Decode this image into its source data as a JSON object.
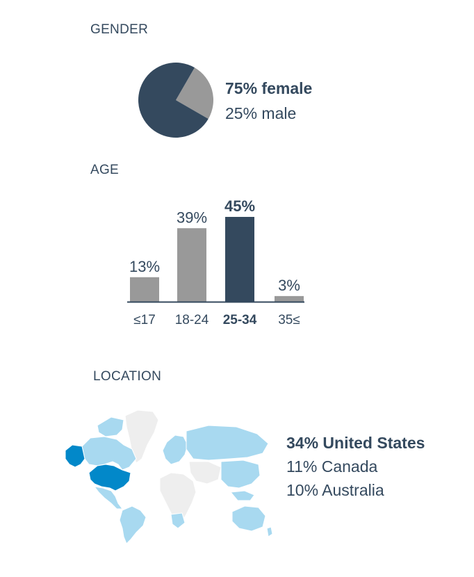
{
  "gender": {
    "title": "GENDER",
    "chart_data": {
      "type": "pie",
      "slices": [
        {
          "label": "75% female",
          "value": 75,
          "color": "#34495e",
          "highlight": true
        },
        {
          "label": "25% male",
          "value": 25,
          "color": "#999999",
          "highlight": false
        }
      ]
    }
  },
  "age": {
    "title": "AGE",
    "chart_data": {
      "type": "bar",
      "categories": [
        "≤17",
        "18-24",
        "25-34",
        "35≤"
      ],
      "values": [
        13,
        39,
        45,
        3
      ],
      "value_labels": [
        "13%",
        "39%",
        "45%",
        "3%"
      ],
      "highlight_index": 2,
      "colors": {
        "default": "#999999",
        "highlight": "#34495e",
        "axis": "#34495e"
      }
    }
  },
  "location": {
    "title": "LOCATION",
    "items": [
      {
        "label": "34% United States",
        "highlight": true
      },
      {
        "label": "11% Canada",
        "highlight": false
      },
      {
        "label": "10% Australia",
        "highlight": false
      }
    ],
    "colors": {
      "top": "#0288c9",
      "mid": "#a8d9f0",
      "none": "#eeeeee"
    }
  }
}
